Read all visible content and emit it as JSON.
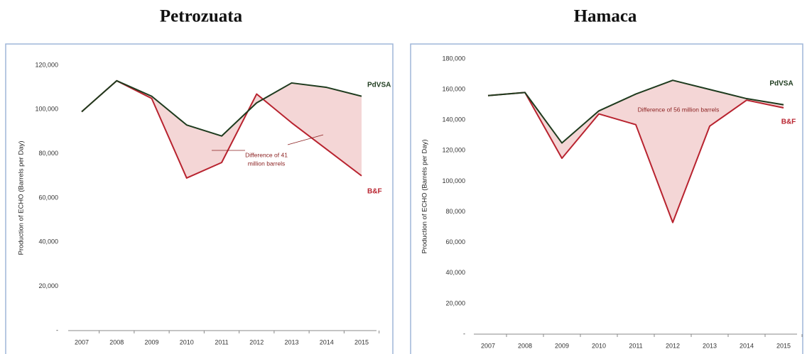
{
  "chart_data": [
    {
      "type": "line",
      "title": "Petrozuata",
      "y_label": "Production of ECHO (Barrels per Day)",
      "categories": [
        "2007",
        "2008",
        "2009",
        "2010",
        "2011",
        "2012",
        "2013",
        "2014",
        "2015"
      ],
      "series": [
        {
          "name": "PdVSA",
          "color": "#1e3b1e",
          "values": [
            99000,
            113000,
            106000,
            93000,
            88000,
            103000,
            112000,
            110000,
            106000
          ]
        },
        {
          "name": "B&F",
          "color": "#b8232f",
          "values": [
            99000,
            113000,
            105000,
            69000,
            76000,
            107000,
            94000,
            82000,
            70000
          ]
        }
      ],
      "fill_color": "#f4d6d6",
      "ylim": [
        0,
        120000
      ],
      "yticks": [
        {
          "value": 0,
          "label": "-"
        },
        {
          "value": 20000,
          "label": "20,000"
        },
        {
          "value": 40000,
          "label": "40,000"
        },
        {
          "value": 60000,
          "label": "60,000"
        },
        {
          "value": 80000,
          "label": "80,000"
        },
        {
          "value": 100000,
          "label": "100,000"
        },
        {
          "value": 120000,
          "label": "120,000"
        }
      ],
      "annotation": [
        "Difference of 41",
        "million barrels"
      ]
    },
    {
      "type": "line",
      "title": "Hamaca",
      "y_label": "Production of ECHO (Barrels per Day)",
      "categories": [
        "2007",
        "2008",
        "2009",
        "2010",
        "2011",
        "2012",
        "2013",
        "2014",
        "2015"
      ],
      "series": [
        {
          "name": "PdVSA",
          "color": "#1e3b1e",
          "values": [
            156000,
            158000,
            125000,
            146000,
            157000,
            166000,
            160000,
            154000,
            150000
          ]
        },
        {
          "name": "B&F",
          "color": "#b8232f",
          "values": [
            156000,
            158000,
            115000,
            144000,
            137000,
            73000,
            136000,
            153000,
            148000
          ]
        }
      ],
      "fill_color": "#f4d6d6",
      "ylim": [
        0,
        180000
      ],
      "yticks": [
        {
          "value": 0,
          "label": "-"
        },
        {
          "value": 20000,
          "label": "20,000"
        },
        {
          "value": 40000,
          "label": "40,000"
        },
        {
          "value": 60000,
          "label": "60,000"
        },
        {
          "value": 80000,
          "label": "80,000"
        },
        {
          "value": 100000,
          "label": "100,000"
        },
        {
          "value": 120000,
          "label": "120,000"
        },
        {
          "value": 140000,
          "label": "140,000"
        },
        {
          "value": 160000,
          "label": "160,000"
        },
        {
          "value": 180000,
          "label": "180,000"
        }
      ],
      "annotation": [
        "Difference of 56 million barrels"
      ]
    }
  ]
}
